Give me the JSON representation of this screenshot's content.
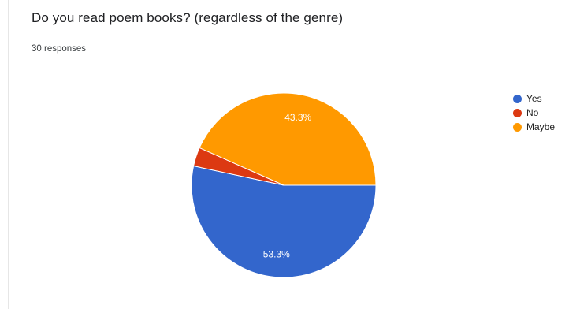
{
  "question": {
    "title": "Do you read poem books? (regardless of the genre)",
    "responses": "30 responses"
  },
  "chart_data": {
    "type": "pie",
    "categories": [
      "Yes",
      "No",
      "Maybe"
    ],
    "values": [
      53.3,
      3.3,
      43.3
    ],
    "colors": [
      "#3366cc",
      "#dc3912",
      "#ff9900"
    ],
    "data_labels": [
      "53.3%",
      "",
      "43.3%"
    ],
    "legend_position": "right",
    "title": "Do you read poem books? (regardless of the genre)"
  }
}
